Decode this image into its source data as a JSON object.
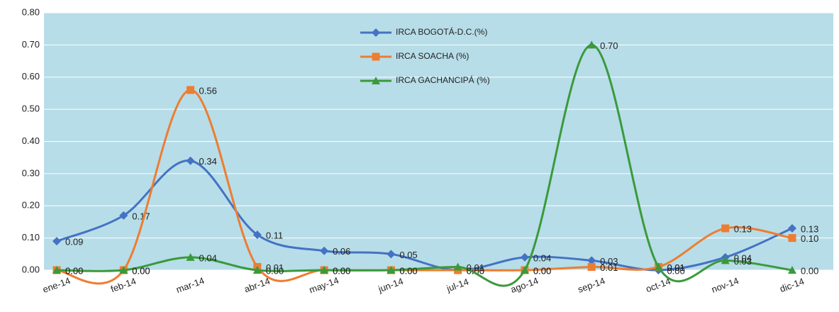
{
  "chart_data": {
    "type": "line",
    "categories": [
      "ene-14",
      "feb-14",
      "mar-14",
      "abr-14",
      "may-14",
      "jun-14",
      "jul-14",
      "ago-14",
      "sep-14",
      "oct-14",
      "nov-14",
      "dic-14"
    ],
    "ylim": [
      0,
      0.8
    ],
    "yticks": [
      {
        "value": 0,
        "label": "0.00"
      },
      {
        "value": 0.1,
        "label": "0.10"
      },
      {
        "value": 0.2,
        "label": "0.20"
      },
      {
        "value": 0.3,
        "label": "0.30"
      },
      {
        "value": 0.4,
        "label": "0.40"
      },
      {
        "value": 0.5,
        "label": "0.50"
      },
      {
        "value": 0.6,
        "label": "0.60"
      },
      {
        "value": 0.7,
        "label": "0.70"
      },
      {
        "value": 0.8,
        "label": "0.80"
      }
    ],
    "grid": true,
    "legend": "top",
    "series": [
      {
        "name": "IRCA BOGOTÁ-D.C.(%)",
        "color": "#4472c4",
        "marker": "diamond",
        "values": [
          0.09,
          0.17,
          0.34,
          0.11,
          0.06,
          0.05,
          0,
          0.04,
          0.03,
          0,
          0.04,
          0.13
        ],
        "value_labels": [
          "0.09",
          "0.17",
          "0.34",
          "0.11",
          "0.06",
          "0.05",
          "0.00",
          "0.04",
          "0.03",
          "0.00",
          "0.04",
          "0.13"
        ]
      },
      {
        "name": "IRCA SOACHA (%)",
        "color": "#ed7d31",
        "marker": "square",
        "values": [
          0,
          0,
          0.56,
          0.01,
          0,
          0,
          0,
          0,
          0.01,
          0.01,
          0.13,
          0.1
        ],
        "value_labels": [
          "0.00",
          "0.00",
          "0.56",
          "0.01",
          "0.00",
          "0.00",
          "0.00",
          "0.00",
          "0.01",
          "0.01",
          "0.13",
          "0.10"
        ]
      },
      {
        "name": "IRCA GACHANCIPÁ (%)",
        "color": "#3a9a3a",
        "marker": "triangle",
        "values": [
          0,
          0,
          0.04,
          0,
          0,
          0,
          0.01,
          0,
          0.7,
          0.01,
          0.03,
          0
        ],
        "value_labels": [
          "0.00",
          "0.00",
          "0.04",
          "0.00",
          "0.00",
          "0.00",
          "0.01",
          "0.00",
          "0.70",
          "0.01",
          "0.03",
          "0.00"
        ]
      }
    ]
  }
}
